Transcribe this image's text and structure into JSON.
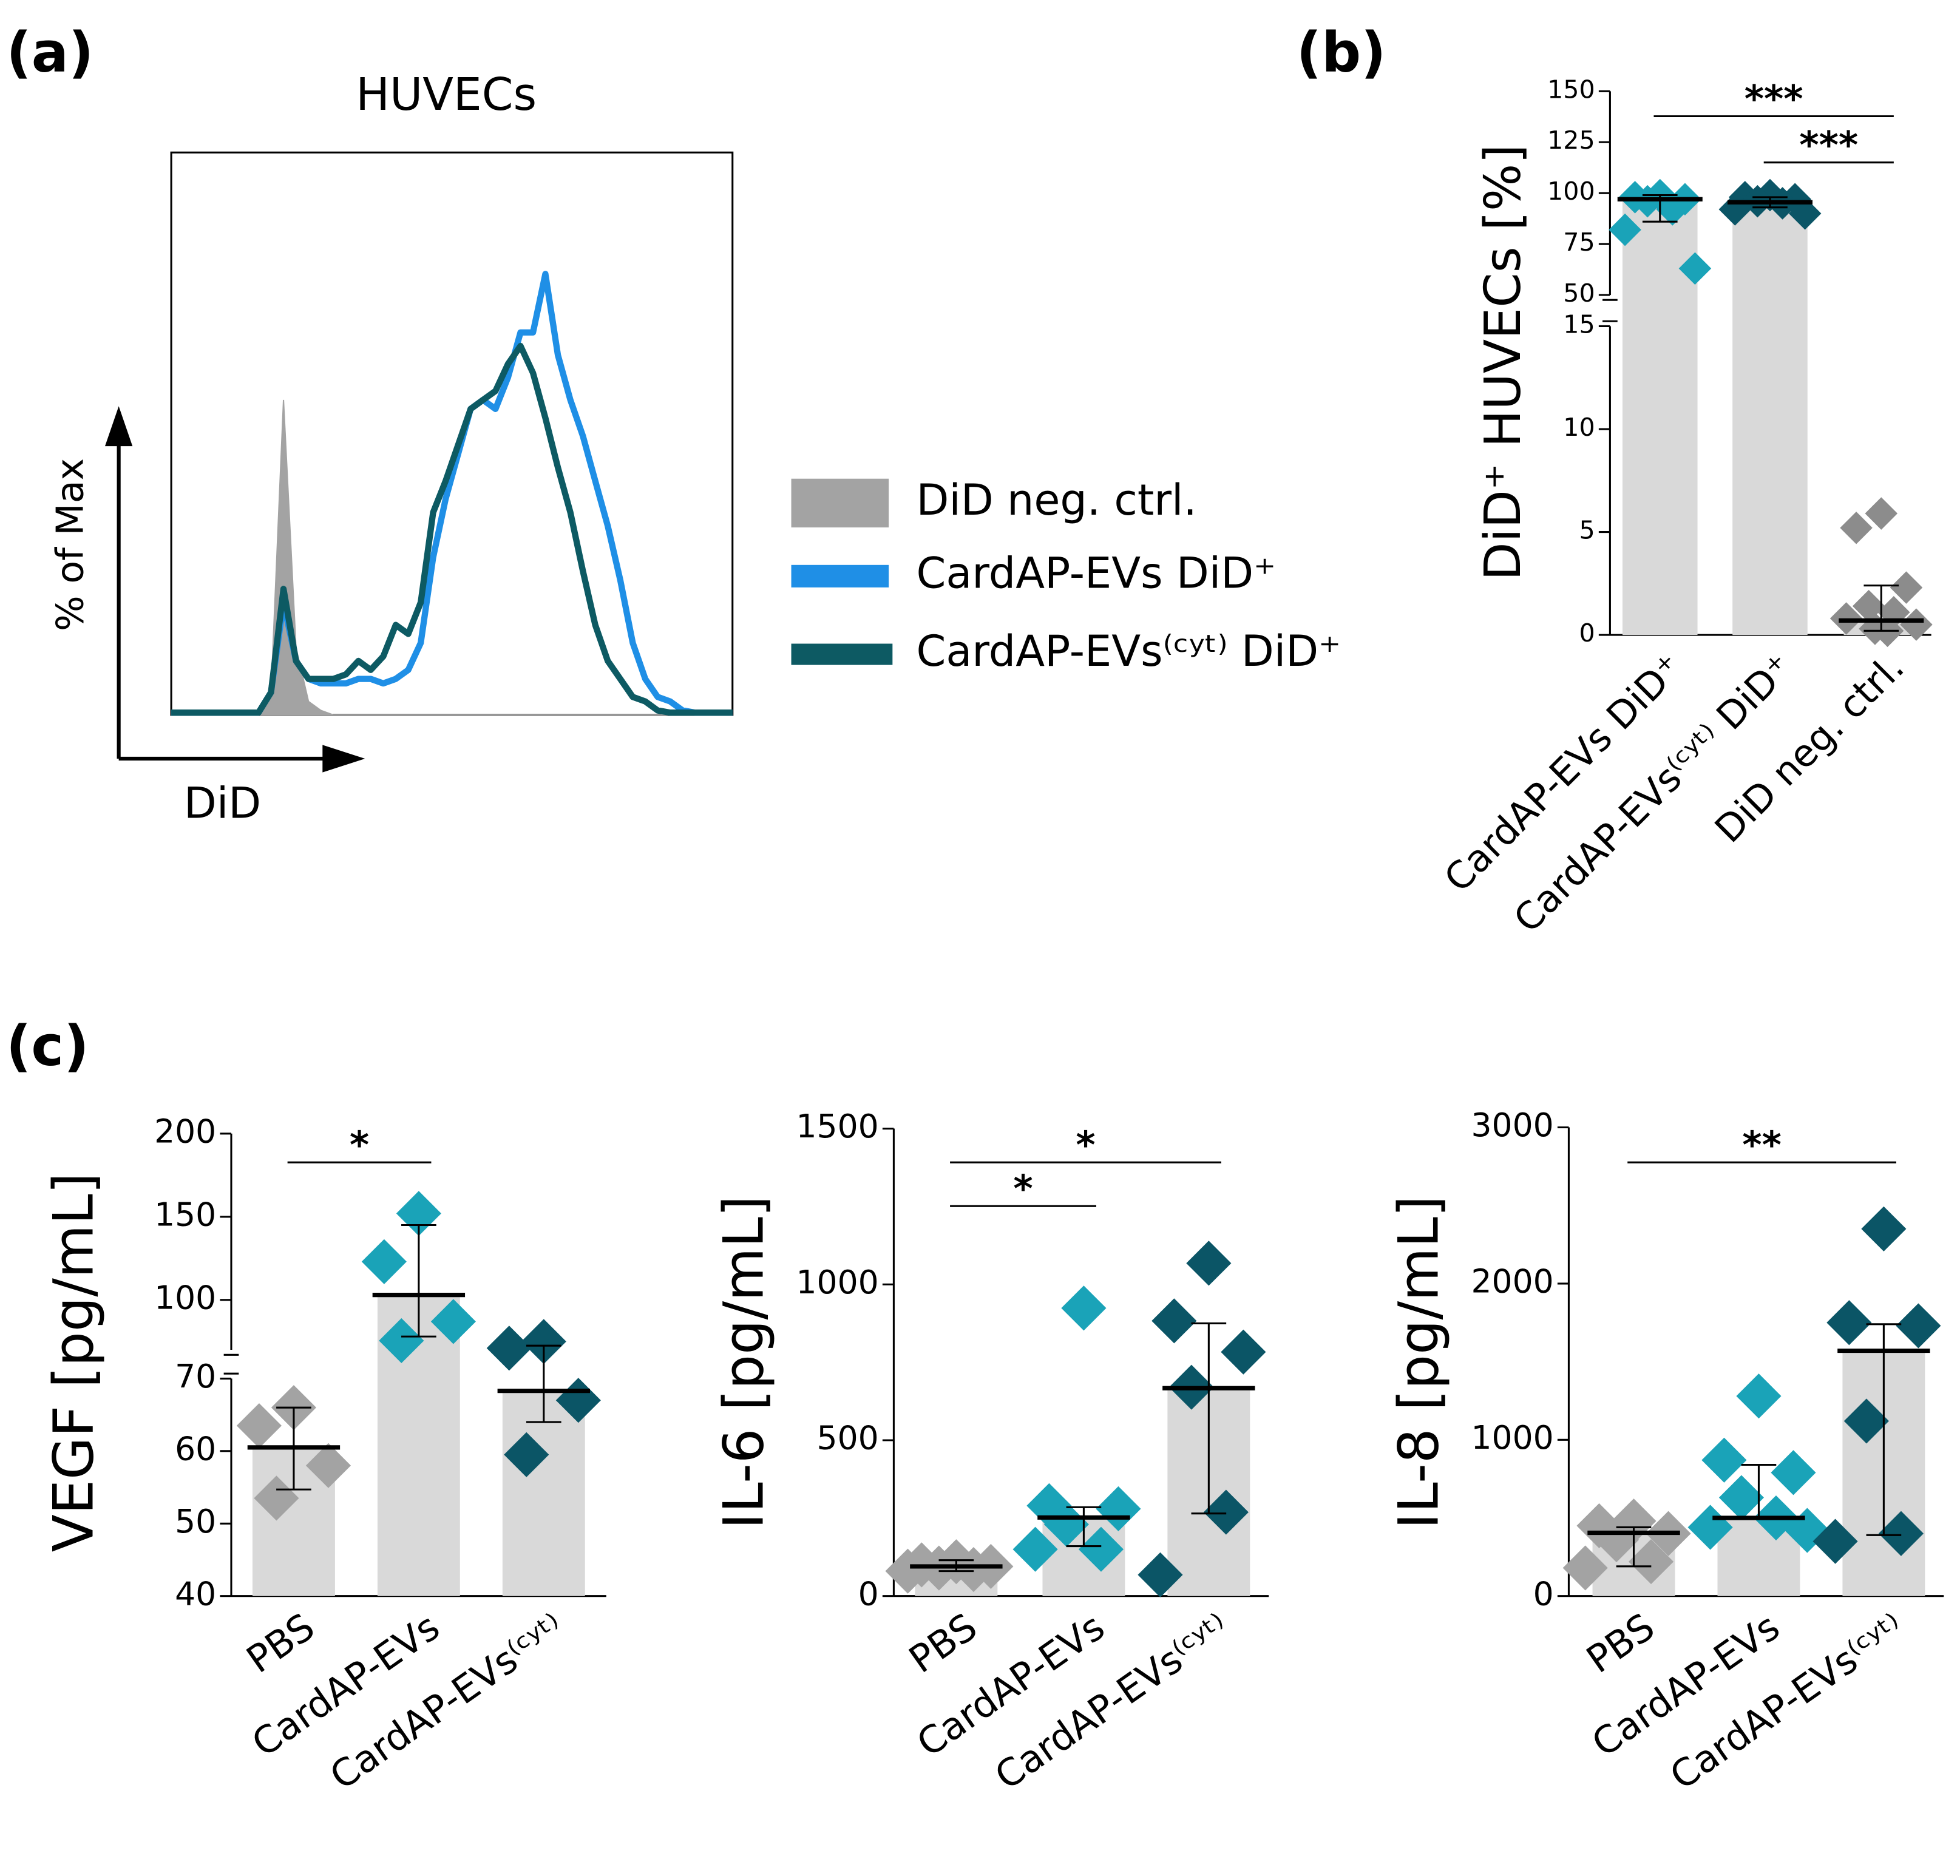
{
  "chart_data": [
    {
      "type": "line",
      "panel": "(a)",
      "title": "HUVECs",
      "xlabel": "DiD",
      "ylabel": "% of Max",
      "ylim": [
        0,
        125
      ],
      "legend": "right",
      "series": [
        {
          "name": "DiD neg. ctrl.",
          "color": "#a3a3a3",
          "area": true,
          "values": [
            0,
            0,
            0,
            0,
            0,
            0,
            0,
            0,
            5,
            70,
            15,
            3,
            1,
            0,
            0,
            0,
            0,
            0,
            0,
            0,
            0,
            0,
            0,
            0,
            0,
            0,
            0,
            0,
            0,
            0,
            0,
            0,
            0,
            0,
            0,
            0,
            0,
            0,
            0,
            0,
            0,
            0,
            0,
            0,
            0,
            0
          ]
        },
        {
          "name": "CardAP-EVs DiD⁺",
          "color": "#1f8fe6",
          "values": [
            0.5,
            0.5,
            0.5,
            0.5,
            0.5,
            0.5,
            0.5,
            0.5,
            5,
            25,
            12,
            8,
            7,
            7,
            7,
            8,
            8,
            7,
            8,
            10,
            16,
            35,
            48,
            58,
            68,
            70,
            68,
            75,
            85,
            85,
            98,
            80,
            70,
            62,
            52,
            42,
            30,
            16,
            8,
            4,
            3,
            1,
            0.5,
            0.5,
            0.5,
            0.5
          ]
        },
        {
          "name": "CardAP-EVs⁽ᶜʸᵗ⁾ DiD⁺",
          "color": "#0d5a63",
          "values": [
            0.5,
            0.5,
            0.5,
            0.5,
            0.5,
            0.5,
            0.5,
            0.5,
            5,
            28,
            12,
            8,
            8,
            8,
            9,
            12,
            10,
            13,
            20,
            18,
            25,
            45,
            52,
            60,
            68,
            70,
            72,
            78,
            82,
            76,
            66,
            55,
            45,
            32,
            20,
            12,
            8,
            4,
            3,
            1,
            0.5,
            0.5,
            0.5,
            0.5,
            0.5,
            0.5
          ]
        }
      ]
    },
    {
      "type": "bar",
      "panel": "(b)",
      "ylabel": "DiD⁺ HUVECs [%]",
      "categories": [
        "CardAP-EVs DiD⁺",
        "CardAP-EVs⁽ᶜʸᵗ⁾ DiD⁺",
        "DiD neg. ctrl."
      ],
      "values": [
        97,
        95.5,
        0.7
      ],
      "points": [
        [
          99,
          98,
          97,
          96,
          92,
          82,
          63
        ],
        [
          99,
          98,
          97,
          96,
          95,
          92,
          90
        ],
        [
          5.9,
          5.2,
          2.3,
          1.4,
          1.1,
          0.8,
          0.5,
          0.3,
          0.2
        ]
      ],
      "whiskers": [
        [
          86,
          99
        ],
        [
          93,
          98
        ],
        [
          0.2,
          2.4
        ]
      ],
      "bar_color": "#d9d9d9",
      "point_colors": [
        "#1aa3b8",
        "#0b5566",
        "#8c8c8c"
      ],
      "ylim": [
        0,
        150
      ],
      "ybreak": [
        15,
        50
      ],
      "yticks": [
        0,
        5,
        10,
        15,
        50,
        75,
        100,
        125,
        150
      ],
      "significance": [
        {
          "groups": [
            "CardAP-EVs DiD⁺",
            "DiD neg. ctrl."
          ],
          "label": "***"
        },
        {
          "groups": [
            "CardAP-EVs⁽ᶜʸᵗ⁾ DiD⁺",
            "DiD neg. ctrl."
          ],
          "label": "***"
        }
      ]
    },
    {
      "type": "bar",
      "panel": "(c)",
      "ylabel": "VEGF [pg/mL]",
      "categories": [
        "PBS",
        "CardAP-EVs",
        "CardAP-EVs⁽ᶜʸᵗ⁾"
      ],
      "values": [
        60.5,
        103,
        68.3
      ],
      "points": [
        [
          66,
          63.5,
          58,
          53.5
        ],
        [
          152,
          123,
          87,
          75.5
        ],
        [
          75,
          71,
          67,
          59.5
        ]
      ],
      "whiskers": [
        [
          54.7,
          66
        ],
        [
          78,
          145
        ],
        [
          64,
          72.5
        ]
      ],
      "bar_color": "#d9d9d9",
      "point_colors": [
        "#a3a3a3",
        "#1aa3b8",
        "#0b5566"
      ],
      "ylim": [
        40,
        200
      ],
      "ybreak": [
        70,
        70
      ],
      "yticks": [
        40,
        50,
        60,
        70,
        100,
        150,
        200
      ],
      "significance": [
        {
          "groups": [
            "PBS",
            "CardAP-EVs"
          ],
          "label": "*"
        }
      ]
    },
    {
      "type": "bar",
      "ylabel": "IL-6 [pg/mL]",
      "categories": [
        "PBS",
        "CardAP-EVs",
        "CardAP-EVs⁽ᶜʸᵗ⁾"
      ],
      "values": [
        95,
        252,
        667
      ],
      "points": [
        [
          110,
          100,
          95,
          90,
          85,
          80
        ],
        [
          924,
          290,
          280,
          230,
          150,
          150
        ],
        [
          1068,
          883,
          783,
          670,
          269,
          68
        ]
      ],
      "whiskers": [
        [
          80,
          115
        ],
        [
          160,
          285
        ],
        [
          265,
          875
        ]
      ],
      "bar_color": "#d9d9d9",
      "point_colors": [
        "#a3a3a3",
        "#1aa3b8",
        "#0b5566"
      ],
      "ylim": [
        0,
        1500
      ],
      "yticks": [
        0,
        500,
        1000,
        1500
      ],
      "significance": [
        {
          "groups": [
            "PBS",
            "CardAP-EVs"
          ],
          "label": "*"
        },
        {
          "groups": [
            "PBS",
            "CardAP-EVs⁽ᶜʸᵗ⁾"
          ],
          "label": "*"
        }
      ]
    },
    {
      "type": "bar",
      "ylabel": "IL-8 [pg/mL]",
      "categories": [
        "PBS",
        "CardAP-EVs",
        "CardAP-EVs⁽ᶜʸᵗ⁾"
      ],
      "values": [
        405,
        500,
        1570
      ],
      "points": [
        [
          480,
          450,
          400,
          360,
          220,
          180
        ],
        [
          1280,
          870,
          790,
          630,
          500,
          440,
          420
        ],
        [
          2350,
          1750,
          1730,
          1120,
          400,
          350
        ]
      ],
      "whiskers": [
        [
          190,
          440
        ],
        [
          500,
          840
        ],
        [
          390,
          1740
        ]
      ],
      "bar_color": "#d9d9d9",
      "point_colors": [
        "#a3a3a3",
        "#1aa3b8",
        "#0b5566"
      ],
      "ylim": [
        0,
        3000
      ],
      "yticks": [
        0,
        1000,
        2000,
        3000
      ],
      "significance": [
        {
          "groups": [
            "PBS",
            "CardAP-EVs⁽ᶜʸᵗ⁾"
          ],
          "label": "**"
        }
      ]
    }
  ]
}
